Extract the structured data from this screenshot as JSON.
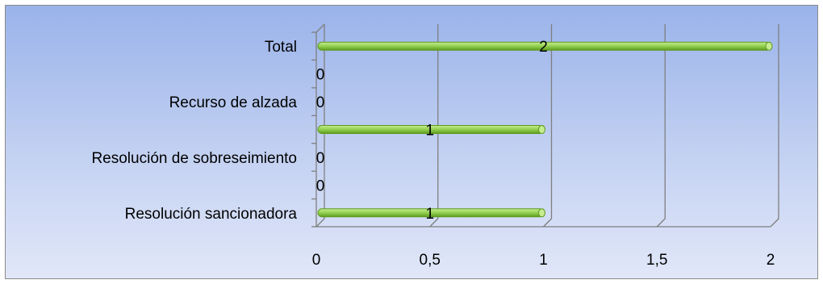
{
  "chart_data": {
    "type": "bar",
    "orientation": "horizontal",
    "style": "3d",
    "categories": [
      "Resolución sancionadora",
      "",
      "Resolución de sobreseimiento",
      "",
      "Recurso de alzada",
      "",
      "Total"
    ],
    "values": [
      1,
      0,
      0,
      1,
      0,
      0,
      2
    ],
    "data_labels": [
      "1",
      "0",
      "0",
      "1",
      "0",
      "0",
      "2"
    ],
    "xlim": [
      0,
      2
    ],
    "x_ticks": [
      "0",
      "0,5",
      "1",
      "1,5",
      "2"
    ],
    "x_tick_values": [
      0,
      0.5,
      1,
      1.5,
      2
    ],
    "grid": true,
    "legend": "none",
    "colors": {
      "bar": "#92d050",
      "bar_dark": "#5e9a1e",
      "bar_light": "#c6ec90",
      "grid": "#7f7f7f",
      "background_top": "#9ab3ea",
      "background_bottom": "#e1e7f8"
    }
  }
}
